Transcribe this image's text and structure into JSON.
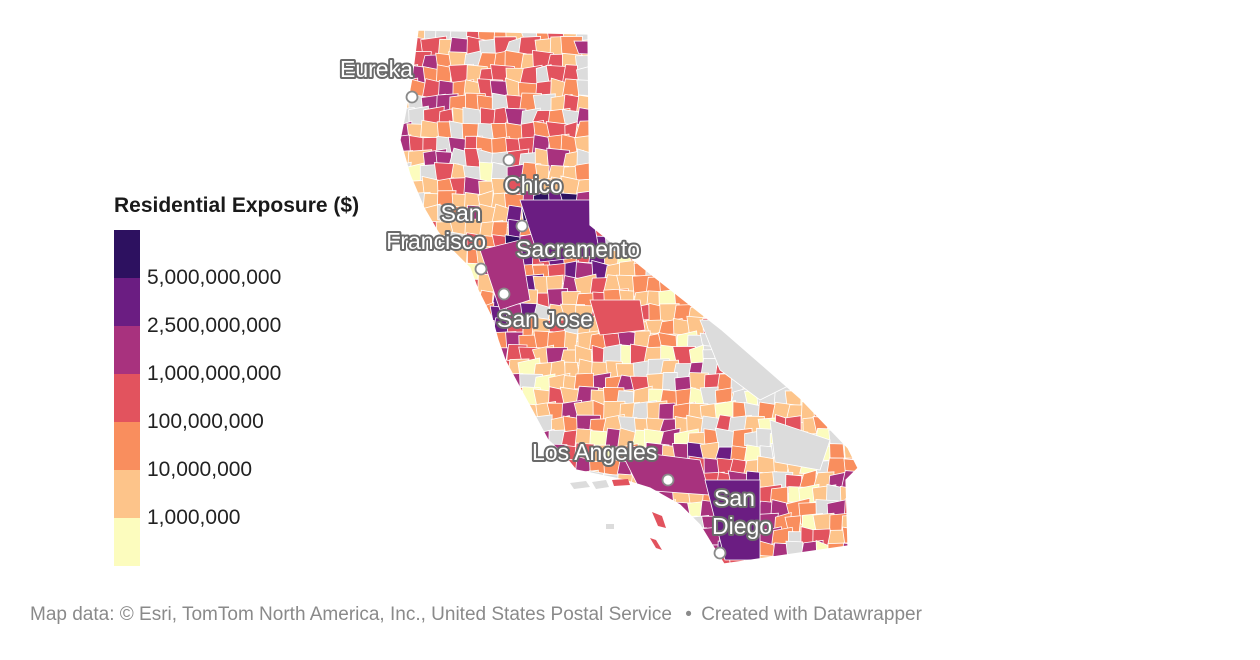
{
  "legend": {
    "title": "Residential Exposure ($)",
    "colors": [
      "#2d1160",
      "#6b1d82",
      "#a8327e",
      "#e2535e",
      "#f98e5e",
      "#fdc48a",
      "#fcfcbe"
    ],
    "labels": [
      "5,000,000,000",
      "2,500,000,000",
      "1,000,000,000",
      "100,000,000",
      "10,000,000",
      "1,000,000"
    ],
    "no_data_color": "#dcdcdc"
  },
  "cities": [
    {
      "id": "eureka",
      "lines": [
        "Eureka"
      ]
    },
    {
      "id": "chico",
      "lines": [
        "Chico"
      ]
    },
    {
      "id": "sacramento",
      "lines": [
        "Sacramento"
      ]
    },
    {
      "id": "san-francisco",
      "lines": [
        "San",
        "Francisco"
      ]
    },
    {
      "id": "san-jose",
      "lines": [
        "San Jose"
      ]
    },
    {
      "id": "los-angeles",
      "lines": [
        "Los Angeles"
      ]
    },
    {
      "id": "san-diego",
      "lines": [
        "San",
        "Diego"
      ]
    }
  ],
  "footer": {
    "attribution": "Map data: © Esri, TomTom North America, Inc., United States Postal Service",
    "separator": "•",
    "credit": "Created with Datawrapper"
  }
}
